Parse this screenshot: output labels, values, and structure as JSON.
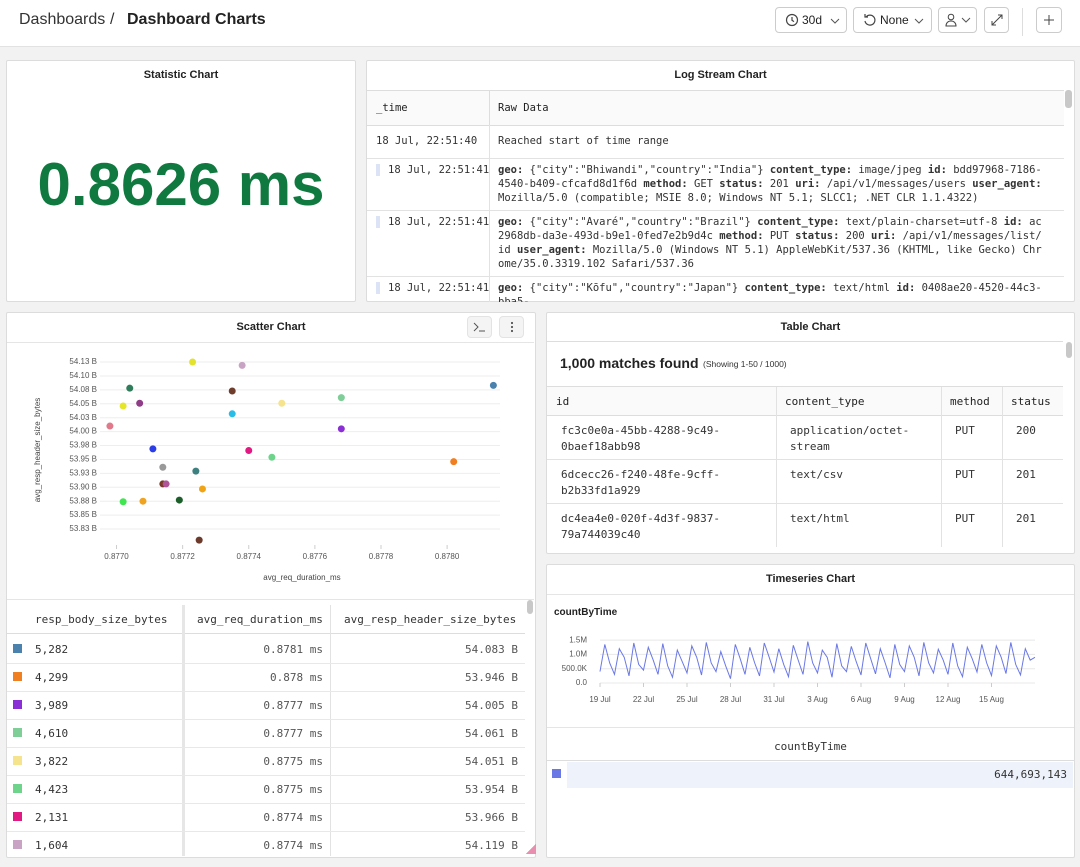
{
  "header": {
    "breadcrumb": [
      "Dashboards",
      "Dashboard Charts"
    ],
    "separator": "/",
    "time_range": "30d",
    "refresh": "None"
  },
  "statistic": {
    "title": "Statistic Chart",
    "value": "0.8626 ms"
  },
  "log_stream": {
    "title": "Log Stream Chart",
    "columns": [
      "_time",
      "Raw Data"
    ],
    "rows": [
      {
        "time": "18 Jul, 22:51:40",
        "message": "Reached start of time range"
      },
      {
        "time": "18 Jul, 22:51:41",
        "fields": [
          {
            "key": "geo:",
            "value": "{\"city\":\"Bhiwandi\",\"country\":\"India\"}"
          },
          {
            "key": "content_type:",
            "value": "image/jpeg"
          },
          {
            "key": "id:",
            "value": "bdd97968-7186-4540-b409-cfcafd8d1f6d"
          },
          {
            "key": "method:",
            "value": "GET"
          },
          {
            "key": "status:",
            "value": "201"
          },
          {
            "key": "uri:",
            "value": "/api/v1/messages/users"
          },
          {
            "key": "user_agent:",
            "value": "Mozilla/5.0 (compatible; MSIE 8.0; Windows NT 5.1; SLCC1; .NET CLR 1.1.4322)"
          }
        ]
      },
      {
        "time": "18 Jul, 22:51:41",
        "fields": [
          {
            "key": "geo:",
            "value": "{\"city\":\"Avaré\",\"country\":\"Brazil\"}"
          },
          {
            "key": "content_type:",
            "value": "text/plain-charset=utf-8"
          },
          {
            "key": "id:",
            "value": "ac2968db-da3e-493d-b9e1-0fed7e2b9d4c"
          },
          {
            "key": "method:",
            "value": "PUT"
          },
          {
            "key": "status:",
            "value": "200"
          },
          {
            "key": "uri:",
            "value": "/api/v1/messages/list/id"
          },
          {
            "key": "user_agent:",
            "value": "Mozilla/5.0 (Windows NT 5.1) AppleWebKit/537.36 (KHTML, like Gecko) Chrome/35.0.3319.102 Safari/537.36"
          }
        ]
      },
      {
        "time": "18 Jul, 22:51:41",
        "fields": [
          {
            "key": "geo:",
            "value": "{\"city\":\"Kōfu\",\"country\":\"Japan\"}"
          },
          {
            "key": "content_type:",
            "value": "text/html"
          },
          {
            "key": "id:",
            "value": "0408ae20-4520-44c3-bba5-"
          }
        ]
      }
    ]
  },
  "table_chart": {
    "title": "Table Chart",
    "matches": "1,000 matches found",
    "showing": "(Showing 1-50 / 1000)",
    "columns": [
      "id",
      "content_type",
      "method",
      "status"
    ],
    "rows": [
      [
        "fc3c0e0a-45bb-4288-9c49-0baef18abb98",
        "application/octet-stream",
        "PUT",
        "200"
      ],
      [
        "6dcecc26-f240-48fe-9cff-b2b33fd1a929",
        "text/csv",
        "PUT",
        "201"
      ],
      [
        "dc4ea4e0-020f-4d3f-9837-79a744039c40",
        "text/html",
        "PUT",
        "201"
      ]
    ]
  },
  "chart_data": [
    {
      "type": "scatter",
      "title": "Scatter Chart",
      "x_label": "avg_req_duration_ms",
      "y_label": "avg_resp_header_size_bytes",
      "x": [
        0.87723,
        0.87738,
        0.87814,
        0.87704,
        0.87735,
        0.87768,
        0.87707,
        0.87702,
        0.8775,
        0.87735,
        0.87698,
        0.87768,
        0.87711,
        0.8774,
        0.87747,
        0.87802,
        0.87714,
        0.87724,
        0.87714,
        0.87715,
        0.87726,
        0.87719,
        0.87702,
        0.87708,
        0.87725
      ],
      "values": [
        54.125,
        54.119,
        54.083,
        54.078,
        54.073,
        54.061,
        54.051,
        54.046,
        54.051,
        54.032,
        54.01,
        54.005,
        53.969,
        53.966,
        53.954,
        53.946,
        53.936,
        53.929,
        53.906,
        53.906,
        53.897,
        53.877,
        53.874,
        53.875,
        53.805
      ],
      "colors": [
        "#e3e32e",
        "#c9a3c4",
        "#4a82ad",
        "#2f7d5a",
        "#6e3d2b",
        "#7fcd97",
        "#8e3d86",
        "#e6e628",
        "#f5e38e",
        "#27bde6",
        "#e07a8a",
        "#8a2ed6",
        "#2b3de6",
        "#e01a82",
        "#6ed48c",
        "#f07f22",
        "#999999",
        "#3e7f80",
        "#7a3a2a",
        "#b0549a",
        "#f0a415",
        "#1b5e2a",
        "#3fe650",
        "#eea321",
        "#6b3a2a"
      ],
      "xlim": [
        0.87695,
        0.87816
      ],
      "ylim": [
        53.7963,
        54.1466
      ],
      "xticks": [
        {
          "value": 0.877,
          "label": "0.8770"
        },
        {
          "value": 0.8772,
          "label": "0.8772"
        },
        {
          "value": 0.8774,
          "label": "0.8774"
        },
        {
          "value": 0.8776,
          "label": "0.8776"
        },
        {
          "value": 0.8778,
          "label": "0.8778"
        },
        {
          "value": 0.878,
          "label": "0.8780"
        }
      ],
      "yticks": [
        {
          "value": 54.125,
          "label": "54.13 B"
        },
        {
          "value": 54.1,
          "label": "54.10 B"
        },
        {
          "value": 54.075,
          "label": "54.08 B"
        },
        {
          "value": 54.05,
          "label": "54.05 B"
        },
        {
          "value": 54.025,
          "label": "54.03 B"
        },
        {
          "value": 54.0,
          "label": "54.00 B"
        },
        {
          "value": 53.975,
          "label": "53.98 B"
        },
        {
          "value": 53.95,
          "label": "53.95 B"
        },
        {
          "value": 53.925,
          "label": "53.93 B"
        },
        {
          "value": 53.9,
          "label": "53.90 B"
        },
        {
          "value": 53.875,
          "label": "53.88 B"
        },
        {
          "value": 53.85,
          "label": "53.85 B"
        },
        {
          "value": 53.825,
          "label": "53.83 B"
        }
      ],
      "grid": true,
      "table": {
        "columns": [
          "resp_body_size_bytes",
          "avg_req_duration_ms",
          "avg_resp_header_size_bytes"
        ],
        "colors": [
          "#4a82ad",
          "#f07f22",
          "#8a2ed6",
          "#7fcd97",
          "#f5e38e",
          "#6ed48c",
          "#e01a82",
          "#c9a3c4"
        ],
        "rows": [
          [
            "5,282",
            "0.8781 ms",
            "54.083 B"
          ],
          [
            "4,299",
            "0.878 ms",
            "53.946 B"
          ],
          [
            "3,989",
            "0.8777 ms",
            "54.005 B"
          ],
          [
            "4,610",
            "0.8777 ms",
            "54.061 B"
          ],
          [
            "3,822",
            "0.8775 ms",
            "54.051 B"
          ],
          [
            "4,423",
            "0.8775 ms",
            "53.954 B"
          ],
          [
            "2,131",
            "0.8774 ms",
            "53.966 B"
          ],
          [
            "1,604",
            "0.8774 ms",
            "54.119 B"
          ]
        ]
      }
    },
    {
      "type": "line",
      "title": "Timeseries Chart",
      "series": [
        {
          "name": "countByTime",
          "color": "#6a78e6",
          "values": [
            400000,
            1350000,
            700000,
            300000,
            1200000,
            900000,
            250000,
            1400000,
            650000,
            450000,
            1250000,
            800000,
            300000,
            1380000,
            600000,
            200000,
            1150000,
            750000,
            350000,
            1300000,
            900000,
            280000,
            1420000,
            700000,
            400000,
            1100000,
            600000,
            150000,
            1350000,
            850000,
            300000,
            1250000,
            700000,
            250000,
            1400000,
            900000,
            380000,
            1200000,
            650000,
            220000,
            1320000,
            800000,
            300000,
            1450000,
            700000,
            350000,
            1150000,
            900000,
            200000,
            1380000,
            600000,
            400000,
            1280000,
            750000,
            280000,
            1400000,
            850000,
            320000,
            1200000,
            700000,
            180000,
            1350000,
            650000,
            400000,
            1300000,
            900000,
            250000,
            1420000,
            700000,
            350000,
            1180000,
            800000,
            300000,
            1400000,
            600000,
            220000,
            1250000,
            850000,
            380000,
            1350000,
            700000,
            260000,
            1300000,
            900000,
            330000,
            1420000,
            650000,
            280000,
            1200000,
            800000,
            900000
          ]
        }
      ],
      "ylim": [
        0,
        1750000
      ],
      "yticks": [
        {
          "value": 0,
          "label": "0.0"
        },
        {
          "value": 500000,
          "label": "500.0K"
        },
        {
          "value": 1000000,
          "label": "1.0M"
        },
        {
          "value": 1500000,
          "label": "1.5M"
        }
      ],
      "xlim": [
        0,
        90
      ],
      "xticks": [
        {
          "value": 0,
          "label": "19 Jul"
        },
        {
          "value": 9,
          "label": "22 Jul"
        },
        {
          "value": 18,
          "label": "25 Jul"
        },
        {
          "value": 27,
          "label": "28 Jul"
        },
        {
          "value": 36,
          "label": "31 Jul"
        },
        {
          "value": 45,
          "label": "3 Aug"
        },
        {
          "value": 54,
          "label": "6 Aug"
        },
        {
          "value": 63,
          "label": "9 Aug"
        },
        {
          "value": 72,
          "label": "12 Aug"
        },
        {
          "value": 81,
          "label": "15 Aug"
        }
      ],
      "grid": true,
      "table": {
        "columns": [
          "countByTime"
        ],
        "rows": [
          [
            "644,693,143"
          ]
        ]
      }
    }
  ]
}
